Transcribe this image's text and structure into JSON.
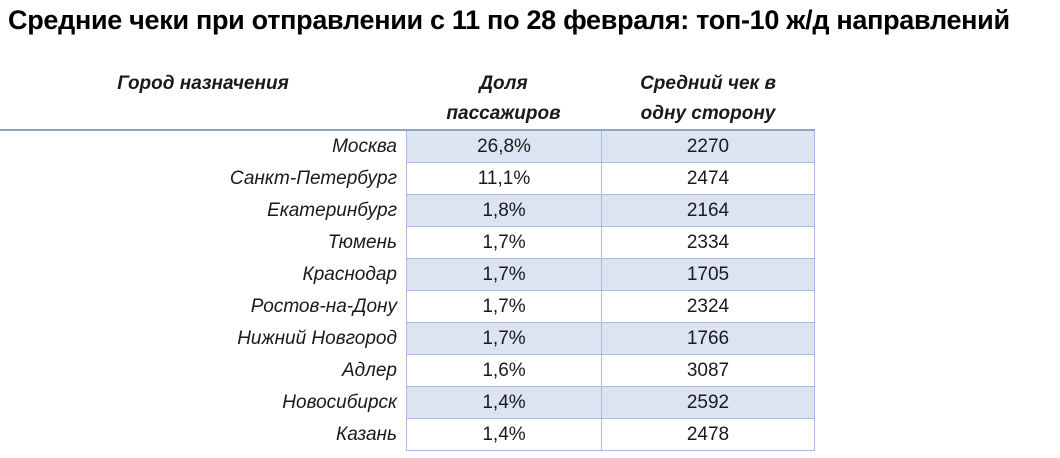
{
  "title": "Средние чеки при отправлении с 11 по 28 февраля: топ-10 ж/д направлений",
  "colors": {
    "background": "#FFFFFF",
    "title_text": "#000000",
    "text": "#1A1A1A",
    "band_fill": "#DCE4F2",
    "cell_border": "#A9BDE0",
    "header_rule": "#8EA5CB"
  },
  "table": {
    "columns": [
      {
        "line1": "Город назначения",
        "line2": ""
      },
      {
        "line1": "Доля",
        "line2": "пассажиров"
      },
      {
        "line1": "Средний чек в",
        "line2": "одну сторону"
      }
    ],
    "rows": [
      {
        "city": "Москва",
        "share": "26,8%",
        "avg_check": "2270"
      },
      {
        "city": "Санкт-Петербург",
        "share": "11,1%",
        "avg_check": "2474"
      },
      {
        "city": "Екатеринбург",
        "share": "1,8%",
        "avg_check": "2164"
      },
      {
        "city": "Тюмень",
        "share": "1,7%",
        "avg_check": "2334"
      },
      {
        "city": "Краснодар",
        "share": "1,7%",
        "avg_check": "1705"
      },
      {
        "city": "Ростов-на-Дону",
        "share": "1,7%",
        "avg_check": "2324"
      },
      {
        "city": "Нижний Новгород",
        "share": "1,7%",
        "avg_check": "1766"
      },
      {
        "city": "Адлер",
        "share": "1,6%",
        "avg_check": "3087"
      },
      {
        "city": "Новосибирск",
        "share": "1,4%",
        "avg_check": "2592"
      },
      {
        "city": "Казань",
        "share": "1,4%",
        "avg_check": "2478"
      }
    ]
  },
  "chart_data": {
    "type": "table",
    "title": "Средние чеки при отправлении с 11 по 28 февраля: топ-10 ж/д направлений",
    "columns": [
      "Город назначения",
      "Доля пассажиров",
      "Средний чек в одну сторону"
    ],
    "rows": [
      [
        "Москва",
        26.8,
        2270
      ],
      [
        "Санкт-Петербург",
        11.1,
        2474
      ],
      [
        "Екатеринбург",
        1.8,
        2164
      ],
      [
        "Тюмень",
        1.7,
        2334
      ],
      [
        "Краснодар",
        1.7,
        1705
      ],
      [
        "Ростов-на-Дону",
        1.7,
        2324
      ],
      [
        "Нижний Новгород",
        1.7,
        1766
      ],
      [
        "Адлер",
        1.6,
        3087
      ],
      [
        "Новосибирск",
        1.4,
        2592
      ],
      [
        "Казань",
        1.4,
        2478
      ]
    ],
    "share_unit": "%",
    "layout_hints": {
      "banded_rows": true,
      "decimal_separator": "comma"
    }
  }
}
